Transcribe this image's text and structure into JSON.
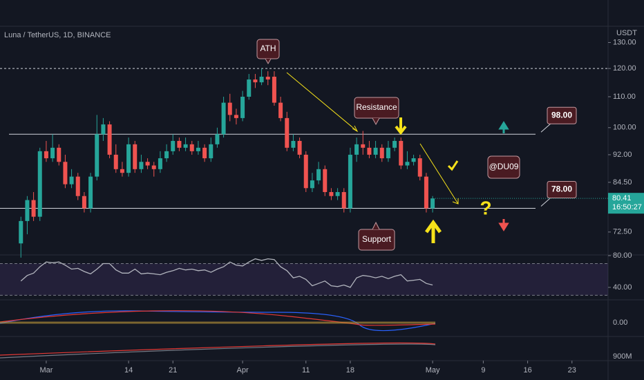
{
  "chart_data": [
    {
      "type": "candlestick",
      "title": "Luna / TetherUS, 1D, BINANCE",
      "currency": "USDT",
      "open": [
        70,
        75,
        80,
        76,
        93,
        91,
        94,
        90,
        84,
        86,
        81,
        78,
        86,
        98,
        101,
        92,
        88,
        87,
        95,
        88,
        90,
        89,
        88,
        91,
        93,
        96,
        94,
        95,
        93,
        94,
        91,
        95,
        98,
        108,
        104,
        103,
        110,
        116,
        115,
        117,
        117,
        108,
        103,
        94,
        96,
        92,
        83,
        85,
        88,
        82,
        81,
        82,
        78,
        92,
        95,
        94,
        92,
        94,
        91,
        94,
        96,
        89,
        90,
        91,
        86,
        78
      ],
      "high": [
        76,
        81,
        82,
        94,
        96,
        98,
        95,
        92,
        88,
        87,
        82,
        87,
        104,
        103,
        102,
        95,
        90,
        97,
        96,
        92,
        91,
        90,
        93,
        95,
        98,
        97,
        97,
        96,
        96,
        95,
        97,
        100,
        110,
        111,
        106,
        112,
        118,
        118,
        120,
        119,
        119,
        110,
        105,
        98,
        97,
        93,
        87,
        90,
        89,
        83,
        83,
        83,
        94,
        97,
        99,
        96,
        96,
        95,
        96,
        97,
        97,
        93,
        92,
        92,
        87,
        81
      ],
      "low": [
        67,
        72,
        75,
        75,
        90,
        90,
        89,
        83,
        83,
        80,
        77,
        77,
        85,
        96,
        91,
        87,
        86,
        86,
        87,
        87,
        88,
        86,
        87,
        90,
        92,
        93,
        93,
        92,
        92,
        90,
        90,
        94,
        97,
        102,
        101,
        102,
        109,
        113,
        114,
        114,
        107,
        102,
        93,
        93,
        91,
        82,
        82,
        84,
        81,
        80,
        80,
        77,
        77,
        90,
        92,
        91,
        91,
        90,
        90,
        93,
        88,
        88,
        89,
        85,
        77,
        77
      ],
      "close": [
        75,
        80,
        76,
        93,
        91,
        94,
        90,
        84,
        86,
        81,
        78,
        86,
        98,
        101,
        92,
        88,
        87,
        95,
        88,
        90,
        89,
        88,
        91,
        93,
        96,
        94,
        95,
        93,
        94,
        91,
        95,
        98,
        108,
        104,
        103,
        110,
        116,
        115,
        117,
        116,
        108,
        103,
        94,
        96,
        92,
        83,
        85,
        88,
        82,
        81,
        82,
        78,
        92,
        95,
        94,
        92,
        94,
        91,
        94,
        96,
        89,
        90,
        91,
        86,
        78,
        80.41
      ],
      "up_color": "#26a69a",
      "down_color": "#ef5350",
      "log_scale": true,
      "grid": false,
      "xlim": [
        -3.3,
        92.7
      ],
      "xticks": [
        {
          "value": 4,
          "label": "Mar"
        },
        {
          "value": 17,
          "label": "14"
        },
        {
          "value": 24,
          "label": "21"
        },
        {
          "value": 35,
          "label": "Apr"
        },
        {
          "value": 45,
          "label": "11"
        },
        {
          "value": 52,
          "label": "18"
        },
        {
          "value": 65,
          "label": "May"
        },
        {
          "value": 73,
          "label": "9"
        },
        {
          "value": 80,
          "label": "16"
        },
        {
          "value": 87,
          "label": "23"
        }
      ],
      "ylim": [
        67.7,
        136.1
      ],
      "yticks": [
        {
          "value": 130,
          "label": "130.00"
        },
        {
          "value": 120,
          "label": "120.00"
        },
        {
          "value": 110,
          "label": "110.00"
        },
        {
          "value": 100,
          "label": "100.00"
        },
        {
          "value": 92,
          "label": "92.00"
        },
        {
          "value": 84.5,
          "label": "84.50"
        },
        {
          "value": 72.5,
          "label": "72.50"
        }
      ],
      "ath_line": 120,
      "levels": [
        {
          "value": 98,
          "label": "98.00"
        },
        {
          "value": 78,
          "label": "78.00"
        }
      ],
      "last_price": 80.41,
      "countdown": "16:50:27",
      "annotations": {
        "ath": "ATH",
        "resistance": "Resistance",
        "support": "Support",
        "author": "@DU09",
        "question": "?"
      }
    },
    {
      "type": "line",
      "values": [
        48,
        55,
        58,
        66,
        72,
        71,
        72,
        68,
        63,
        64,
        60,
        57,
        63,
        70,
        70,
        62,
        58,
        58,
        63,
        57,
        58,
        57,
        56,
        59,
        61,
        64,
        62,
        63,
        61,
        62,
        59,
        63,
        66,
        72,
        68,
        67,
        72,
        76,
        74,
        76,
        75,
        66,
        61,
        52,
        54,
        50,
        42,
        45,
        48,
        42,
        41,
        43,
        40,
        52,
        55,
        54,
        52,
        54,
        51,
        54,
        56,
        48,
        49,
        50,
        45,
        43
      ],
      "color": "#b2b5be",
      "ylim": [
        26,
        80
      ],
      "yticks": [
        {
          "value": 80,
          "label": "80.00"
        },
        {
          "value": 40,
          "label": "40.00"
        }
      ],
      "bands": [
        70,
        30
      ]
    }
  ],
  "macd_axis": "0.00",
  "lower_axis": "900M"
}
